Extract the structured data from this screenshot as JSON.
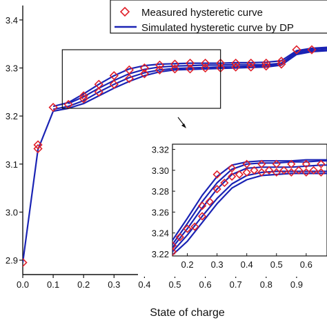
{
  "chart_data": [
    {
      "type": "line",
      "role": "main",
      "xlabel": "State of charge",
      "ylabel": "",
      "xlim": [
        0.0,
        1.0
      ],
      "ylim": [
        2.87,
        3.43
      ],
      "xticks": [
        "0.0",
        "0.1",
        "0.2",
        "0.3",
        "0.4",
        "0.5",
        "0.6",
        "0.7",
        "0.8",
        "0.9"
      ],
      "yticks": [
        "2.9",
        "3.0",
        "3.1",
        "3.2",
        "3.3",
        "3.4"
      ],
      "grid": false,
      "legend": "top-right",
      "series": [
        {
          "name": "Measured hysteretic curve",
          "style": "markers",
          "marker": "diamond",
          "color": "#e0202a",
          "x": [
            0.0,
            0.05,
            0.05,
            0.1,
            0.15,
            0.2,
            0.2,
            0.25,
            0.25,
            0.3,
            0.3,
            0.35,
            0.35,
            0.4,
            0.4,
            0.45,
            0.45,
            0.5,
            0.5,
            0.55,
            0.55,
            0.6,
            0.6,
            0.65,
            0.65,
            0.7,
            0.7,
            0.75,
            0.75,
            0.8,
            0.8,
            0.85,
            0.85,
            0.9,
            0.95
          ],
          "y": [
            2.895,
            3.132,
            3.14,
            3.218,
            3.224,
            3.236,
            3.242,
            3.25,
            3.266,
            3.266,
            3.284,
            3.278,
            3.296,
            3.288,
            3.3,
            3.296,
            3.306,
            3.298,
            3.308,
            3.298,
            3.31,
            3.3,
            3.31,
            3.3,
            3.31,
            3.302,
            3.31,
            3.302,
            3.31,
            3.304,
            3.31,
            3.308,
            3.314,
            3.338,
            3.338
          ]
        },
        {
          "name": "Simulated hysteretic curve by DP",
          "style": "lines",
          "color": "#1a23b4",
          "branches": [
            {
              "x": [
                0.0,
                0.05,
                0.1,
                0.15,
                0.2,
                0.25,
                0.3,
                0.35,
                0.4,
                0.45,
                0.5,
                0.55,
                0.6,
                0.65,
                0.7,
                0.75,
                0.8,
                0.85,
                0.9,
                0.95,
                1.0
              ],
              "y": [
                2.895,
                3.13,
                3.21,
                3.216,
                3.226,
                3.242,
                3.258,
                3.272,
                3.284,
                3.292,
                3.296,
                3.297,
                3.298,
                3.299,
                3.3,
                3.301,
                3.302,
                3.306,
                3.328,
                3.334,
                3.336
              ]
            },
            {
              "x": [
                0.1,
                0.15,
                0.2,
                0.25,
                0.3,
                0.35,
                0.4,
                0.45,
                0.5,
                0.55,
                0.6,
                0.65,
                0.7,
                0.75,
                0.8,
                0.85,
                0.9,
                0.95,
                1.0
              ],
              "y": [
                3.214,
                3.22,
                3.232,
                3.25,
                3.266,
                3.28,
                3.29,
                3.296,
                3.299,
                3.3,
                3.301,
                3.302,
                3.303,
                3.304,
                3.305,
                3.308,
                3.331,
                3.336,
                3.338
              ]
            },
            {
              "x": [
                0.15,
                0.2,
                0.25,
                0.3,
                0.35,
                0.4,
                0.45,
                0.5,
                0.55,
                0.6,
                0.65,
                0.7,
                0.75,
                0.8,
                0.85,
                0.9,
                0.95,
                1.0
              ],
              "y": [
                3.226,
                3.24,
                3.258,
                3.274,
                3.288,
                3.297,
                3.302,
                3.304,
                3.305,
                3.306,
                3.306,
                3.307,
                3.307,
                3.307,
                3.31,
                3.334,
                3.339,
                3.341
              ]
            },
            {
              "x": [
                0.1,
                0.15,
                0.2,
                0.25,
                0.3,
                0.35,
                0.4,
                0.45,
                0.5,
                0.55,
                0.6,
                0.65,
                0.7,
                0.75,
                0.8,
                0.85,
                0.9,
                0.95,
                1.0
              ],
              "y": [
                3.22,
                3.228,
                3.246,
                3.266,
                3.284,
                3.298,
                3.305,
                3.308,
                3.309,
                3.31,
                3.31,
                3.31,
                3.311,
                3.311,
                3.312,
                3.315,
                3.336,
                3.341,
                3.343
              ]
            }
          ]
        }
      ]
    },
    {
      "type": "line",
      "role": "inset",
      "xlim": [
        0.15,
        0.67
      ],
      "ylim": [
        3.218,
        3.325
      ],
      "xticks": [
        "0.2",
        "0.3",
        "0.4",
        "0.5",
        "0.6"
      ],
      "yticks": [
        "3.22",
        "3.24",
        "3.26",
        "3.28",
        "3.30",
        "3.32"
      ],
      "series": [
        {
          "name": "Measured hysteretic curve",
          "style": "markers",
          "marker": "diamond",
          "color": "#e0202a",
          "x": [
            0.15,
            0.15,
            0.175,
            0.2,
            0.225,
            0.25,
            0.25,
            0.275,
            0.3,
            0.3,
            0.325,
            0.35,
            0.35,
            0.375,
            0.4,
            0.4,
            0.425,
            0.45,
            0.45,
            0.475,
            0.5,
            0.5,
            0.525,
            0.55,
            0.55,
            0.575,
            0.6,
            0.6,
            0.625,
            0.65,
            0.65
          ],
          "y": [
            3.222,
            3.228,
            3.236,
            3.244,
            3.246,
            3.266,
            3.256,
            3.27,
            3.296,
            3.282,
            3.288,
            3.302,
            3.294,
            3.296,
            3.306,
            3.298,
            3.3,
            3.306,
            3.298,
            3.3,
            3.306,
            3.298,
            3.3,
            3.306,
            3.298,
            3.3,
            3.306,
            3.298,
            3.3,
            3.306,
            3.298
          ]
        },
        {
          "name": "Simulated hysteretic curve by DP",
          "style": "lines",
          "color": "#1a23b4",
          "branches": [
            {
              "x": [
                0.15,
                0.2,
                0.25,
                0.3,
                0.35,
                0.4,
                0.45,
                0.5,
                0.55,
                0.6,
                0.65,
                0.67
              ],
              "y": [
                3.219,
                3.232,
                3.25,
                3.268,
                3.283,
                3.291,
                3.295,
                3.296,
                3.297,
                3.297,
                3.297,
                3.297
              ]
            },
            {
              "x": [
                0.15,
                0.2,
                0.25,
                0.3,
                0.35,
                0.4,
                0.45,
                0.5,
                0.55,
                0.6,
                0.65,
                0.67
              ],
              "y": [
                3.222,
                3.238,
                3.256,
                3.273,
                3.287,
                3.295,
                3.298,
                3.299,
                3.299,
                3.299,
                3.299,
                3.299
              ]
            },
            {
              "x": [
                0.15,
                0.2,
                0.25,
                0.3,
                0.35,
                0.4,
                0.45,
                0.5,
                0.55,
                0.6,
                0.65,
                0.67
              ],
              "y": [
                3.226,
                3.244,
                3.264,
                3.282,
                3.296,
                3.302,
                3.303,
                3.303,
                3.303,
                3.304,
                3.305,
                3.305
              ]
            },
            {
              "x": [
                0.15,
                0.2,
                0.25,
                0.3,
                0.35,
                0.4,
                0.45,
                0.5,
                0.55,
                0.6,
                0.65,
                0.67
              ],
              "y": [
                3.229,
                3.249,
                3.27,
                3.288,
                3.301,
                3.306,
                3.307,
                3.307,
                3.308,
                3.308,
                3.309,
                3.309
              ]
            },
            {
              "x": [
                0.15,
                0.2,
                0.25,
                0.3,
                0.35,
                0.4,
                0.45,
                0.5,
                0.55,
                0.6,
                0.65,
                0.67
              ],
              "y": [
                3.233,
                3.254,
                3.276,
                3.294,
                3.305,
                3.308,
                3.309,
                3.309,
                3.309,
                3.31,
                3.31,
                3.31
              ]
            }
          ]
        }
      ]
    }
  ]
}
